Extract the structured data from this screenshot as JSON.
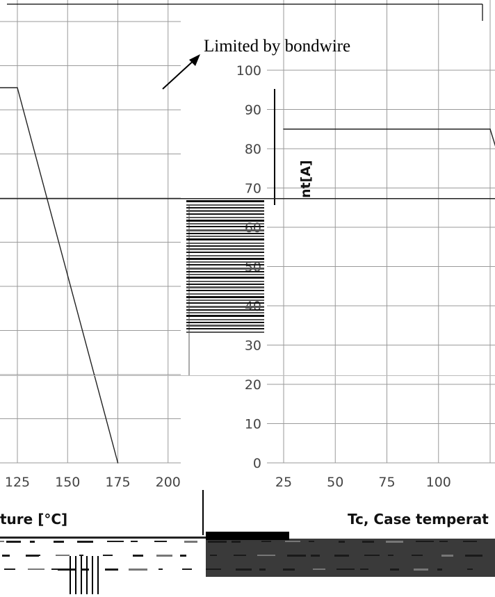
{
  "chart_data": [
    {
      "type": "line",
      "title": "",
      "xlabel": "Tc, Case temperature [°C]",
      "ylabel": "Drain current[A]",
      "x_ticks": [
        "25",
        "50",
        "75",
        "100",
        "125",
        "150",
        "175",
        "200"
      ],
      "y_ticks": [
        "0",
        "10",
        "20",
        "30",
        "40",
        "50",
        "60",
        "70",
        "80",
        "90",
        "100"
      ],
      "xlim": [
        25,
        200
      ],
      "ylim": [
        0,
        100
      ],
      "grid": true,
      "series": [
        {
          "x": [
            25,
            125,
            175
          ],
          "y": [
            85,
            85,
            0
          ]
        }
      ]
    },
    {
      "type": "line",
      "title": "",
      "xlabel": "Tc, Case temperature [°C]",
      "ylabel": "Drain current[A]",
      "x_ticks": [
        "25",
        "50",
        "75",
        "100",
        "125",
        "150",
        "175",
        "200"
      ],
      "y_ticks": [
        "0",
        "10",
        "20",
        "30",
        "40",
        "50",
        "60",
        "70",
        "80",
        "90",
        "100"
      ],
      "xlim": [
        25,
        200
      ],
      "ylim": [
        0,
        100
      ],
      "grid": true,
      "series": [
        {
          "x": [
            25,
            125,
            175
          ],
          "y": [
            85,
            85,
            0
          ]
        }
      ]
    }
  ],
  "annotation": {
    "text": "Limited by bondwire"
  },
  "labels": {
    "xlabel_left_visible": "ture [°C]",
    "xlabel_right_visible": "Tc, Case temperat",
    "ylabel_visible": "nt[A]"
  }
}
